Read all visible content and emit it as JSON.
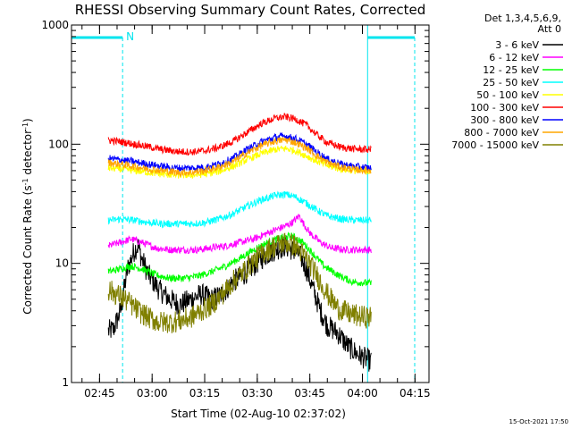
{
  "chart_data": {
    "type": "line",
    "title": "RHESSI Observing Summary Count Rates, Corrected",
    "xlabel": "Start Time (02-Aug-10 02:37:02)",
    "ylabel": "Corrected Count Rate (s",
    "ylabel_sup1": "-1",
    "ylabel_mid": " detector",
    "ylabel_sup2": "-1",
    "ylabel_end": ")",
    "yscale": "log",
    "ylim": [
      1,
      1000
    ],
    "xlim_minutes": [
      0,
      102
    ],
    "x_start": "02:37:02",
    "y_ticks": [
      {
        "value": 1,
        "label": "1"
      },
      {
        "value": 10,
        "label": "10"
      },
      {
        "value": 100,
        "label": "100"
      },
      {
        "value": 1000,
        "label": "1000"
      }
    ],
    "x_ticks": [
      {
        "minute": 8,
        "label": "02:45"
      },
      {
        "minute": 23,
        "label": "03:00"
      },
      {
        "minute": 38,
        "label": "03:15"
      },
      {
        "minute": 53,
        "label": "03:30"
      },
      {
        "minute": 68,
        "label": "03:45"
      },
      {
        "minute": 83,
        "label": "04:00"
      },
      {
        "minute": 98,
        "label": "04:15"
      }
    ],
    "legend_header": [
      "Det 1,3,4,5,6,9,",
      "Att 0"
    ],
    "night_marker": "N",
    "data_interval_minutes": [
      10.5,
      85.5
    ],
    "series": [
      {
        "name": "3 - 6 keV",
        "color": "#000000",
        "points": [
          [
            10.5,
            2.7
          ],
          [
            12,
            2.8
          ],
          [
            14,
            4
          ],
          [
            16,
            9
          ],
          [
            18,
            13
          ],
          [
            19,
            14
          ],
          [
            20,
            11
          ],
          [
            22,
            8
          ],
          [
            25,
            6
          ],
          [
            28,
            5
          ],
          [
            31,
            4.5
          ],
          [
            34,
            5
          ],
          [
            37,
            5.5
          ],
          [
            40,
            5
          ],
          [
            43,
            5.5
          ],
          [
            46,
            7
          ],
          [
            49,
            8
          ],
          [
            52,
            9.5
          ],
          [
            55,
            11.5
          ],
          [
            58,
            13
          ],
          [
            61,
            14
          ],
          [
            63,
            13
          ],
          [
            65,
            12
          ],
          [
            67,
            9
          ],
          [
            69,
            6
          ],
          [
            71,
            4
          ],
          [
            73,
            3
          ],
          [
            76,
            2.6
          ],
          [
            79,
            2
          ],
          [
            82,
            1.7
          ],
          [
            85.5,
            1.5
          ]
        ]
      },
      {
        "name": "6 - 12 keV",
        "color": "#ff00ff",
        "points": [
          [
            10.5,
            14
          ],
          [
            14,
            15
          ],
          [
            17,
            16
          ],
          [
            20,
            15
          ],
          [
            24,
            13.5
          ],
          [
            28,
            13
          ],
          [
            32,
            13
          ],
          [
            36,
            13
          ],
          [
            40,
            13.5
          ],
          [
            44,
            14
          ],
          [
            48,
            15
          ],
          [
            52,
            16
          ],
          [
            56,
            18
          ],
          [
            60,
            20
          ],
          [
            63,
            22
          ],
          [
            65,
            25
          ],
          [
            66,
            22
          ],
          [
            68,
            18
          ],
          [
            71,
            15
          ],
          [
            74,
            13.5
          ],
          [
            78,
            13
          ],
          [
            82,
            13
          ],
          [
            85.5,
            13
          ]
        ]
      },
      {
        "name": "12 - 25 keV",
        "color": "#00ff00",
        "points": [
          [
            10.5,
            8.5
          ],
          [
            14,
            9
          ],
          [
            17,
            9.5
          ],
          [
            20,
            9
          ],
          [
            24,
            8
          ],
          [
            28,
            7.5
          ],
          [
            32,
            7.5
          ],
          [
            36,
            7.8
          ],
          [
            40,
            8.5
          ],
          [
            44,
            9.5
          ],
          [
            48,
            11
          ],
          [
            52,
            13
          ],
          [
            56,
            15
          ],
          [
            60,
            16.5
          ],
          [
            63,
            17
          ],
          [
            66,
            15
          ],
          [
            69,
            12
          ],
          [
            72,
            9.5
          ],
          [
            76,
            8
          ],
          [
            80,
            7
          ],
          [
            85.5,
            6.8
          ]
        ]
      },
      {
        "name": "25 - 50 keV",
        "color": "#00ffff",
        "points": [
          [
            10.5,
            23
          ],
          [
            14,
            23.5
          ],
          [
            18,
            23
          ],
          [
            22,
            22
          ],
          [
            26,
            21.5
          ],
          [
            30,
            21.5
          ],
          [
            34,
            21.5
          ],
          [
            38,
            22
          ],
          [
            42,
            23.5
          ],
          [
            46,
            26
          ],
          [
            50,
            30
          ],
          [
            54,
            34
          ],
          [
            58,
            37
          ],
          [
            61,
            38
          ],
          [
            64,
            36
          ],
          [
            67,
            32
          ],
          [
            70,
            28
          ],
          [
            73,
            25
          ],
          [
            77,
            23.5
          ],
          [
            81,
            23
          ],
          [
            85.5,
            23
          ]
        ]
      },
      {
        "name": "50 - 100 keV",
        "color": "#ffff00",
        "points": [
          [
            10.5,
            63
          ],
          [
            14,
            62
          ],
          [
            18,
            60
          ],
          [
            22,
            58
          ],
          [
            26,
            56
          ],
          [
            30,
            55
          ],
          [
            34,
            55
          ],
          [
            38,
            56
          ],
          [
            42,
            59
          ],
          [
            46,
            65
          ],
          [
            50,
            74
          ],
          [
            54,
            83
          ],
          [
            58,
            90
          ],
          [
            61,
            92
          ],
          [
            64,
            88
          ],
          [
            67,
            80
          ],
          [
            70,
            72
          ],
          [
            73,
            66
          ],
          [
            77,
            62
          ],
          [
            81,
            60
          ],
          [
            85.5,
            59
          ]
        ]
      },
      {
        "name": "100 - 300 keV",
        "color": "#ff0000",
        "points": [
          [
            10.5,
            108
          ],
          [
            14,
            105
          ],
          [
            18,
            100
          ],
          [
            22,
            95
          ],
          [
            26,
            90
          ],
          [
            30,
            87
          ],
          [
            34,
            86
          ],
          [
            38,
            88
          ],
          [
            42,
            94
          ],
          [
            46,
            105
          ],
          [
            50,
            125
          ],
          [
            54,
            148
          ],
          [
            58,
            165
          ],
          [
            61,
            170
          ],
          [
            64,
            162
          ],
          [
            67,
            145
          ],
          [
            70,
            120
          ],
          [
            73,
            103
          ],
          [
            77,
            94
          ],
          [
            81,
            91
          ],
          [
            85.5,
            90
          ]
        ]
      },
      {
        "name": "300 - 800 keV",
        "color": "#0000ff",
        "points": [
          [
            10.5,
            76
          ],
          [
            14,
            74
          ],
          [
            18,
            71
          ],
          [
            22,
            68
          ],
          [
            26,
            65
          ],
          [
            30,
            63
          ],
          [
            34,
            63
          ],
          [
            38,
            64
          ],
          [
            42,
            68
          ],
          [
            46,
            76
          ],
          [
            50,
            90
          ],
          [
            54,
            104
          ],
          [
            58,
            114
          ],
          [
            61,
            117
          ],
          [
            64,
            111
          ],
          [
            67,
            100
          ],
          [
            70,
            86
          ],
          [
            73,
            75
          ],
          [
            77,
            68
          ],
          [
            81,
            65
          ],
          [
            85.5,
            63
          ]
        ]
      },
      {
        "name": "800 - 7000 keV",
        "color": "#ffa500",
        "points": [
          [
            10.5,
            70
          ],
          [
            14,
            68
          ],
          [
            18,
            65
          ],
          [
            22,
            62
          ],
          [
            26,
            60
          ],
          [
            30,
            58
          ],
          [
            34,
            58
          ],
          [
            38,
            60
          ],
          [
            42,
            64
          ],
          [
            46,
            71
          ],
          [
            50,
            84
          ],
          [
            54,
            97
          ],
          [
            58,
            106
          ],
          [
            61,
            109
          ],
          [
            64,
            103
          ],
          [
            67,
            93
          ],
          [
            70,
            80
          ],
          [
            73,
            70
          ],
          [
            77,
            64
          ],
          [
            81,
            61
          ],
          [
            85.5,
            60
          ]
        ]
      },
      {
        "name": "7000 - 15000 keV",
        "color": "#808000",
        "points": [
          [
            10.5,
            6
          ],
          [
            13,
            5.5
          ],
          [
            16,
            4.8
          ],
          [
            19,
            4
          ],
          [
            22,
            3.5
          ],
          [
            25,
            3.2
          ],
          [
            28,
            3.2
          ],
          [
            31,
            3.3
          ],
          [
            34,
            3.5
          ],
          [
            37,
            4
          ],
          [
            40,
            4.5
          ],
          [
            43,
            5.5
          ],
          [
            46,
            7
          ],
          [
            49,
            8.5
          ],
          [
            52,
            10.5
          ],
          [
            55,
            12.5
          ],
          [
            58,
            14
          ],
          [
            61,
            15
          ],
          [
            64,
            14
          ],
          [
            67,
            11
          ],
          [
            70,
            8
          ],
          [
            73,
            5.5
          ],
          [
            76,
            4.2
          ],
          [
            79,
            3.8
          ],
          [
            82,
            3.6
          ],
          [
            85.5,
            3.5
          ]
        ]
      }
    ],
    "footer_date": "15-Oct-2021 17:50"
  },
  "colors": {
    "axis": "#000000",
    "marker": "#00e5ee"
  }
}
